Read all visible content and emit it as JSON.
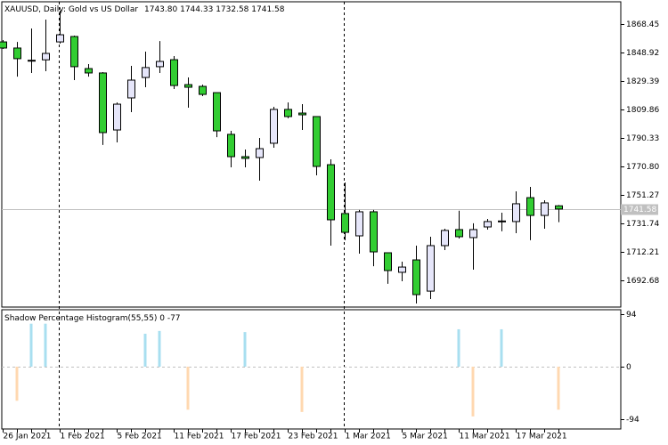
{
  "chart_data": [
    {
      "type": "candlestick",
      "title": "XAUUSD, Daily:  Gold vs US Dollar",
      "categories": [
        "26 Jan 2021",
        null,
        null,
        null,
        "1 Feb 2021",
        null,
        null,
        null,
        "5 Feb 2021",
        null,
        null,
        null,
        "11 Feb 2021",
        null,
        null,
        null,
        "17 Feb 2021",
        null,
        null,
        null,
        "23 Feb 2021",
        null,
        null,
        null,
        "1 Mar 2021",
        null,
        null,
        null,
        "5 Mar 2021",
        null,
        null,
        null,
        "11 Mar 2021",
        null,
        null,
        null,
        "17 Mar 2021",
        null,
        null,
        null
      ],
      "open": [
        1856.2,
        1852.0,
        1843.3,
        1843.9,
        1856.2,
        1859.9,
        1837.9,
        1834.9,
        1795.8,
        1817.8,
        1831.8,
        1839.2,
        1844.0,
        1826.9,
        1825.7,
        1821.4,
        1792.8,
        1777.5,
        1776.9,
        1786.7,
        1809.9,
        1807.4,
        1805.0,
        1772.0,
        1738.5,
        1723.2,
        1739.7,
        1711.6,
        1698.2,
        1706.7,
        1685.3,
        1716.5,
        1727.5,
        1722.0,
        1729.3,
        1732.8,
        1733.0,
        1749.4,
        1737.2,
        1743.8
      ],
      "high": [
        1857.5,
        1856.2,
        1865.4,
        1871.5,
        1877.6,
        1860.5,
        1841.0,
        1835.5,
        1814.7,
        1839.8,
        1849.5,
        1856.8,
        1846.5,
        1831.8,
        1826.9,
        1821.4,
        1795.2,
        1782.4,
        1790.3,
        1811.7,
        1814.7,
        1813.5,
        1805.0,
        1775.7,
        1759.8,
        1741.0,
        1741.0,
        1711.6,
        1705.5,
        1716.5,
        1722.6,
        1728.1,
        1740.4,
        1731.8,
        1734.8,
        1739.1,
        1753.7,
        1756.8,
        1747.6,
        1744.33
      ],
      "low": [
        1851.4,
        1832.4,
        1834.9,
        1836.1,
        1855.0,
        1830.0,
        1832.4,
        1785.5,
        1787.3,
        1808.0,
        1825.1,
        1834.9,
        1823.9,
        1811.1,
        1819.0,
        1790.9,
        1770.2,
        1770.2,
        1761.0,
        1783.6,
        1803.8,
        1795.8,
        1764.7,
        1716.5,
        1720.2,
        1711.0,
        1702.4,
        1690.3,
        1692.1,
        1676.8,
        1679.9,
        1713.4,
        1721.4,
        1700.0,
        1727.5,
        1726.3,
        1725.0,
        1720.2,
        1728.1,
        1732.58
      ],
      "close": [
        1852.0,
        1844.7,
        1843.6,
        1848.3,
        1861.1,
        1839.2,
        1834.9,
        1794.0,
        1813.5,
        1830.0,
        1838.6,
        1842.8,
        1826.3,
        1825.1,
        1820.2,
        1795.2,
        1777.5,
        1776.3,
        1783.0,
        1809.9,
        1805.0,
        1806.2,
        1770.8,
        1734.2,
        1725.6,
        1739.7,
        1712.2,
        1699.4,
        1701.8,
        1682.9,
        1716.5,
        1726.9,
        1722.6,
        1727.5,
        1733.0,
        1733.4,
        1745.2,
        1737.2,
        1745.8,
        1741.58
      ],
      "value_labels": [
        "1743.80",
        "1744.33",
        "1732.58",
        "1741.58"
      ],
      "ylim": [
        1674.37,
        1883.71
      ],
      "yticks": [
        1868.45,
        1848.92,
        1829.39,
        1809.86,
        1790.33,
        {
          "value": 1770.8,
          "label": "1770.80"
        },
        1751.27,
        1731.74,
        1712.21,
        1692.68
      ],
      "up_color": "#e6e6fa",
      "down_color": "#32cd32"
    },
    {
      "type": "bar",
      "title": "Shadow Percentage Histogram(55,55)",
      "series": [
        {
          "color": "#a8dff0",
          "values": [
            0,
            0,
            77,
            77,
            0,
            0,
            0,
            0,
            0,
            0,
            59,
            64,
            0,
            0,
            0,
            0,
            0,
            62,
            0,
            0,
            0,
            0,
            0,
            0,
            0,
            0,
            0,
            0,
            0,
            0,
            0,
            0,
            67,
            0,
            0,
            67,
            0,
            0,
            0,
            0
          ]
        },
        {
          "color": "#ffd8b0",
          "values": [
            0,
            -61,
            0,
            0,
            0,
            0,
            0,
            0,
            0,
            0,
            0,
            0,
            0,
            -77,
            0,
            0,
            0,
            0,
            0,
            0,
            0,
            -81,
            0,
            0,
            0,
            0,
            0,
            0,
            0,
            0,
            0,
            0,
            0,
            -89,
            0,
            0,
            0,
            0,
            0,
            -77
          ]
        }
      ],
      "ylim": [
        -111.5,
        102
      ],
      "yticks": [
        94,
        0,
        -94
      ]
    }
  ]
}
